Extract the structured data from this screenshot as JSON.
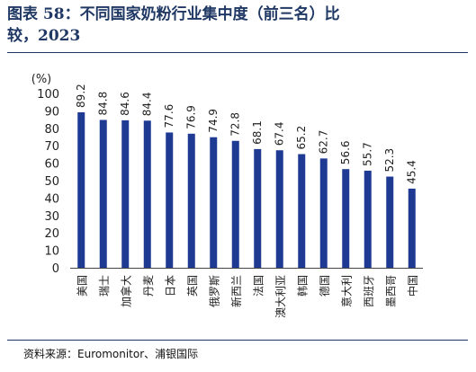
{
  "title": {
    "line1": "图表 58：不同国家奶粉行业集中度（前三名）比",
    "line2": "较，2023"
  },
  "source": "资料来源：Euromonitor、浦银国际",
  "colors": {
    "bar": "#1f3a93",
    "title": "#1f3864",
    "axis": "#444444"
  },
  "chart_data": {
    "type": "bar",
    "title": "图表 58：不同国家奶粉行业集中度（前三名）比较，2023",
    "ylabel": "(%)",
    "xlabel": "",
    "ylim": [
      0,
      100
    ],
    "yticks": [
      0,
      10,
      20,
      30,
      40,
      50,
      60,
      70,
      80,
      90,
      100
    ],
    "grid": false,
    "categories": [
      "美国",
      "瑞士",
      "加拿大",
      "丹麦",
      "日本",
      "英国",
      "俄罗斯",
      "新西兰",
      "法国",
      "澳大利亚",
      "韩国",
      "德国",
      "意大利",
      "西班牙",
      "墨西哥",
      "中国"
    ],
    "values": [
      89.2,
      84.8,
      84.6,
      84.4,
      77.6,
      76.9,
      74.9,
      72.8,
      68.1,
      67.4,
      65.2,
      62.7,
      56.6,
      55.7,
      52.3,
      45.4
    ]
  }
}
